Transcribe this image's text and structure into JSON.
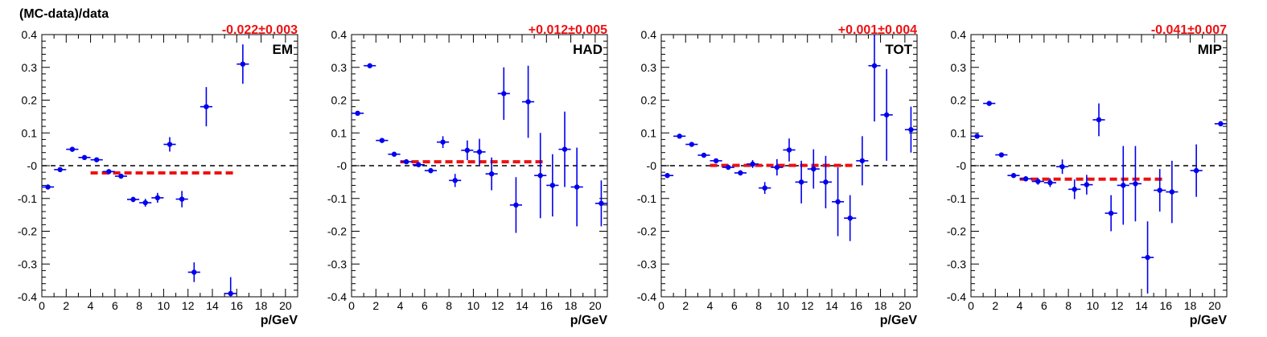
{
  "title": "(MC-data)/data",
  "colors": {
    "points": "#0000ee",
    "fit": "#ee1111",
    "fit_label": "#ee1111",
    "axes": "#000000"
  },
  "chart_data": [
    {
      "type": "scatter",
      "label": "EM",
      "fit_label": "-0.022±0.003",
      "xlabel": "p/GeV",
      "ylabel": "",
      "xlim": [
        0,
        21
      ],
      "ylim": [
        -0.4,
        0.4
      ],
      "x_ticks": [
        "0",
        "2",
        "4",
        "6",
        "8",
        "10",
        "12",
        "14",
        "16",
        "18",
        "20"
      ],
      "y_ticks": [
        "-0.4",
        "-0.3",
        "-0.2",
        "-0.1",
        "-0",
        "0.1",
        "0.2",
        "0.3",
        "0.4"
      ],
      "fit": {
        "value": -0.022,
        "x_range": [
          4,
          16
        ]
      },
      "zero_line": 0,
      "points": [
        {
          "x": 0.5,
          "y": -0.065,
          "yerr": 0.004
        },
        {
          "x": 1.5,
          "y": -0.012,
          "yerr": 0.005
        },
        {
          "x": 2.5,
          "y": 0.05,
          "yerr": 0.005
        },
        {
          "x": 3.5,
          "y": 0.025,
          "yerr": 0.005
        },
        {
          "x": 4.5,
          "y": 0.018,
          "yerr": 0.005
        },
        {
          "x": 5.5,
          "y": -0.018,
          "yerr": 0.006
        },
        {
          "x": 6.5,
          "y": -0.032,
          "yerr": 0.007
        },
        {
          "x": 7.5,
          "y": -0.103,
          "yerr": 0.008
        },
        {
          "x": 8.5,
          "y": -0.113,
          "yerr": 0.012
        },
        {
          "x": 9.5,
          "y": -0.098,
          "yerr": 0.015
        },
        {
          "x": 10.5,
          "y": 0.065,
          "yerr": 0.022
        },
        {
          "x": 11.5,
          "y": -0.102,
          "yerr": 0.025
        },
        {
          "x": 12.5,
          "y": -0.325,
          "yerr": 0.03
        },
        {
          "x": 13.5,
          "y": 0.18,
          "yerr": 0.06
        },
        {
          "x": 15.5,
          "y": -0.39,
          "yerr": 0.05
        },
        {
          "x": 16.5,
          "y": 0.31,
          "yerr": 0.06
        }
      ]
    },
    {
      "type": "scatter",
      "label": "HAD",
      "fit_label": "+0.012±0.005",
      "xlabel": "p/GeV",
      "ylabel": "",
      "xlim": [
        0,
        21
      ],
      "ylim": [
        -0.4,
        0.4
      ],
      "x_ticks": [
        "0",
        "2",
        "4",
        "6",
        "8",
        "10",
        "12",
        "14",
        "16",
        "18",
        "20"
      ],
      "y_ticks": [
        "-0.4",
        "-0.3",
        "-0.2",
        "-0.1",
        "-0",
        "0.1",
        "0.2",
        "0.3",
        "0.4"
      ],
      "fit": {
        "value": 0.012,
        "x_range": [
          4,
          16
        ]
      },
      "zero_line": 0,
      "points": [
        {
          "x": 0.5,
          "y": 0.16,
          "yerr": 0.004
        },
        {
          "x": 1.5,
          "y": 0.305,
          "yerr": 0.004
        },
        {
          "x": 2.5,
          "y": 0.077,
          "yerr": 0.004
        },
        {
          "x": 3.5,
          "y": 0.035,
          "yerr": 0.005
        },
        {
          "x": 4.5,
          "y": 0.012,
          "yerr": 0.006
        },
        {
          "x": 5.5,
          "y": 0.003,
          "yerr": 0.006
        },
        {
          "x": 6.5,
          "y": -0.015,
          "yerr": 0.008
        },
        {
          "x": 7.5,
          "y": 0.072,
          "yerr": 0.018
        },
        {
          "x": 8.5,
          "y": -0.045,
          "yerr": 0.02
        },
        {
          "x": 9.5,
          "y": 0.047,
          "yerr": 0.03
        },
        {
          "x": 10.5,
          "y": 0.042,
          "yerr": 0.04
        },
        {
          "x": 11.5,
          "y": -0.025,
          "yerr": 0.05
        },
        {
          "x": 12.5,
          "y": 0.22,
          "yerr": 0.08
        },
        {
          "x": 13.5,
          "y": -0.12,
          "yerr": 0.085
        },
        {
          "x": 14.5,
          "y": 0.195,
          "yerr": 0.11
        },
        {
          "x": 15.5,
          "y": -0.03,
          "yerr": 0.13
        },
        {
          "x": 16.5,
          "y": -0.06,
          "yerr": 0.095
        },
        {
          "x": 17.5,
          "y": 0.05,
          "yerr": 0.115
        },
        {
          "x": 18.5,
          "y": -0.065,
          "yerr": 0.12
        },
        {
          "x": 20.5,
          "y": -0.115,
          "yerr": 0.07
        }
      ]
    },
    {
      "type": "scatter",
      "label": "TOT",
      "fit_label": "+0.001±0.004",
      "xlabel": "p/GeV",
      "ylabel": "",
      "xlim": [
        0,
        21
      ],
      "ylim": [
        -0.4,
        0.4
      ],
      "x_ticks": [
        "0",
        "2",
        "4",
        "6",
        "8",
        "10",
        "12",
        "14",
        "16",
        "18",
        "20"
      ],
      "y_ticks": [
        "-0.4",
        "-0.3",
        "-0.2",
        "-0.1",
        "-0",
        "0.1",
        "0.2",
        "0.3",
        "0.4"
      ],
      "fit": {
        "value": 0.001,
        "x_range": [
          4,
          16
        ]
      },
      "zero_line": 0,
      "points": [
        {
          "x": 0.5,
          "y": -0.03,
          "yerr": 0.004
        },
        {
          "x": 1.5,
          "y": 0.09,
          "yerr": 0.004
        },
        {
          "x": 2.5,
          "y": 0.065,
          "yerr": 0.004
        },
        {
          "x": 3.5,
          "y": 0.032,
          "yerr": 0.005
        },
        {
          "x": 4.5,
          "y": 0.015,
          "yerr": 0.005
        },
        {
          "x": 5.5,
          "y": -0.005,
          "yerr": 0.006
        },
        {
          "x": 6.5,
          "y": -0.022,
          "yerr": 0.008
        },
        {
          "x": 7.5,
          "y": 0.005,
          "yerr": 0.012
        },
        {
          "x": 8.5,
          "y": -0.068,
          "yerr": 0.018
        },
        {
          "x": 9.5,
          "y": -0.005,
          "yerr": 0.025
        },
        {
          "x": 10.5,
          "y": 0.048,
          "yerr": 0.035
        },
        {
          "x": 11.5,
          "y": -0.05,
          "yerr": 0.065
        },
        {
          "x": 12.5,
          "y": -0.01,
          "yerr": 0.06
        },
        {
          "x": 13.5,
          "y": -0.05,
          "yerr": 0.08
        },
        {
          "x": 14.5,
          "y": -0.11,
          "yerr": 0.105
        },
        {
          "x": 15.5,
          "y": -0.16,
          "yerr": 0.07
        },
        {
          "x": 16.5,
          "y": 0.015,
          "yerr": 0.075
        },
        {
          "x": 17.5,
          "y": 0.305,
          "yerr": 0.17
        },
        {
          "x": 18.5,
          "y": 0.155,
          "yerr": 0.14
        },
        {
          "x": 20.5,
          "y": 0.11,
          "yerr": 0.07
        }
      ]
    },
    {
      "type": "scatter",
      "label": "MIP",
      "fit_label": "-0.041±0.007",
      "xlabel": "p/GeV",
      "ylabel": "",
      "xlim": [
        0,
        21
      ],
      "ylim": [
        -0.4,
        0.4
      ],
      "x_ticks": [
        "0",
        "2",
        "4",
        "6",
        "8",
        "10",
        "12",
        "14",
        "16",
        "18",
        "20"
      ],
      "y_ticks": [
        "-0.4",
        "-0.3",
        "-0.2",
        "-0.1",
        "-0",
        "0.1",
        "0.2",
        "0.3",
        "0.4"
      ],
      "fit": {
        "value": -0.041,
        "x_range": [
          4,
          16
        ]
      },
      "zero_line": 0,
      "points": [
        {
          "x": 0.5,
          "y": 0.09,
          "yerr": 0.005
        },
        {
          "x": 1.5,
          "y": 0.19,
          "yerr": 0.005
        },
        {
          "x": 2.5,
          "y": 0.033,
          "yerr": 0.005
        },
        {
          "x": 3.5,
          "y": -0.03,
          "yerr": 0.006
        },
        {
          "x": 4.5,
          "y": -0.04,
          "yerr": 0.008
        },
        {
          "x": 5.5,
          "y": -0.048,
          "yerr": 0.01
        },
        {
          "x": 6.5,
          "y": -0.052,
          "yerr": 0.013
        },
        {
          "x": 7.5,
          "y": -0.003,
          "yerr": 0.022
        },
        {
          "x": 8.5,
          "y": -0.072,
          "yerr": 0.03
        },
        {
          "x": 9.5,
          "y": -0.058,
          "yerr": 0.03
        },
        {
          "x": 10.5,
          "y": 0.14,
          "yerr": 0.05
        },
        {
          "x": 11.5,
          "y": -0.145,
          "yerr": 0.055
        },
        {
          "x": 12.5,
          "y": -0.06,
          "yerr": 0.12
        },
        {
          "x": 13.5,
          "y": -0.055,
          "yerr": 0.115
        },
        {
          "x": 14.5,
          "y": -0.28,
          "yerr": 0.11
        },
        {
          "x": 15.5,
          "y": -0.075,
          "yerr": 0.065
        },
        {
          "x": 16.5,
          "y": -0.08,
          "yerr": 0.095
        },
        {
          "x": 18.5,
          "y": -0.015,
          "yerr": 0.08
        },
        {
          "x": 20.5,
          "y": 0.128,
          "yerr": 0.008
        }
      ]
    }
  ]
}
